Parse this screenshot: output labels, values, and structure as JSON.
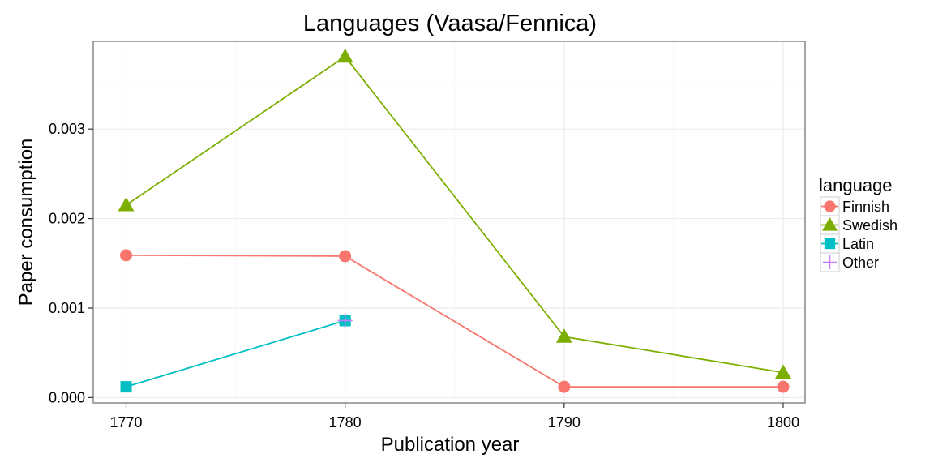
{
  "chart_data": {
    "type": "line",
    "title": "Languages (Vaasa/Fennica)",
    "xlabel": "Publication year",
    "ylabel": "Paper consumption",
    "xlim": [
      1768.5,
      1801
    ],
    "ylim": [
      -6e-05,
      0.00398
    ],
    "x_ticks": [
      1770,
      1780,
      1790,
      1800
    ],
    "x_tick_labels": [
      "1770",
      "1780",
      "1790",
      "1800"
    ],
    "y_ticks": [
      0,
      0.001,
      0.002,
      0.003
    ],
    "y_tick_labels": [
      "0.000",
      "0.001",
      "0.002",
      "0.003"
    ],
    "grid": true,
    "legend": {
      "title": "language",
      "position": "right"
    },
    "series": [
      {
        "name": "Finnish",
        "color": "#F8766D",
        "shape": "circle",
        "x": [
          1770,
          1780,
          1790,
          1800
        ],
        "y": [
          0.00159,
          0.00158,
          0.00012,
          0.00012
        ]
      },
      {
        "name": "Swedish",
        "color": "#7CAE00",
        "shape": "triangle",
        "x": [
          1770,
          1780,
          1790,
          1800
        ],
        "y": [
          0.00215,
          0.00381,
          0.00068,
          0.00028
        ]
      },
      {
        "name": "Latin",
        "color": "#00BFC4",
        "shape": "square",
        "x": [
          1770,
          1780
        ],
        "y": [
          0.00012,
          0.00086
        ]
      },
      {
        "name": "Other",
        "color": "#C77CFF",
        "shape": "plus",
        "x": [
          1780
        ],
        "y": [
          0.00086
        ]
      }
    ]
  }
}
